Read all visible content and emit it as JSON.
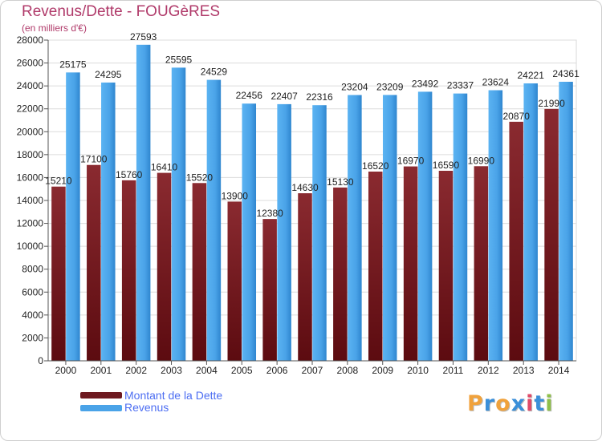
{
  "header": {
    "title": "Revenus/Dette - FOUGèRES",
    "subtitle": "(en milliers d'€)"
  },
  "logo": {
    "text": "Proxiti",
    "colors": [
      "#f0a23c",
      "#3a8fd9",
      "#f0a23c",
      "#3a8fd9",
      "#e04b6a",
      "#3a8fd9",
      "#8fc04a"
    ]
  },
  "colors": {
    "dette": "#7a1f26",
    "revenus": "#4aa3e8",
    "title": "#b03a6a"
  },
  "legend": [
    {
      "label": "Montant de la Dette",
      "color": "#6e1a20"
    },
    {
      "label": "Revenus",
      "color": "#4aa3e8"
    }
  ],
  "chart_data": {
    "type": "bar",
    "title": "Revenus/Dette - FOUGèRES",
    "ylabel": "(en milliers d'€)",
    "xlabel": "",
    "ylim": [
      0,
      28000
    ],
    "yticks": [
      0,
      2000,
      4000,
      6000,
      8000,
      10000,
      12000,
      14000,
      16000,
      18000,
      20000,
      22000,
      24000,
      26000,
      28000
    ],
    "categories": [
      "2000",
      "2001",
      "2002",
      "2003",
      "2004",
      "2005",
      "2006",
      "2007",
      "2008",
      "2009",
      "2010",
      "2011",
      "2012",
      "2013",
      "2014"
    ],
    "series": [
      {
        "name": "Montant de la Dette",
        "values": [
          15210,
          17100,
          15760,
          16410,
          15520,
          13900,
          12380,
          14630,
          15130,
          16520,
          16970,
          16590,
          16990,
          20870,
          21990
        ],
        "labels": [
          "15210",
          "17100",
          "15760",
          "16410",
          "15520",
          "13900",
          "12380",
          "14630",
          "15130",
          "16520",
          "16970",
          "16590",
          "16990",
          "20870",
          "21990"
        ]
      },
      {
        "name": "Revenus",
        "values": [
          25175,
          24295,
          27593,
          25595,
          24529,
          22456,
          22407,
          22316,
          23204,
          23209,
          23492,
          23337,
          23624,
          24221,
          24361
        ],
        "labels": [
          "25175",
          "24295",
          "27593",
          "25595",
          "24529",
          "22456",
          "22407",
          "22316",
          "23204",
          "23209",
          "23492",
          "23337",
          "23624",
          "24221",
          "24361"
        ]
      }
    ],
    "grid": true,
    "legend_position": "bottom-left"
  }
}
